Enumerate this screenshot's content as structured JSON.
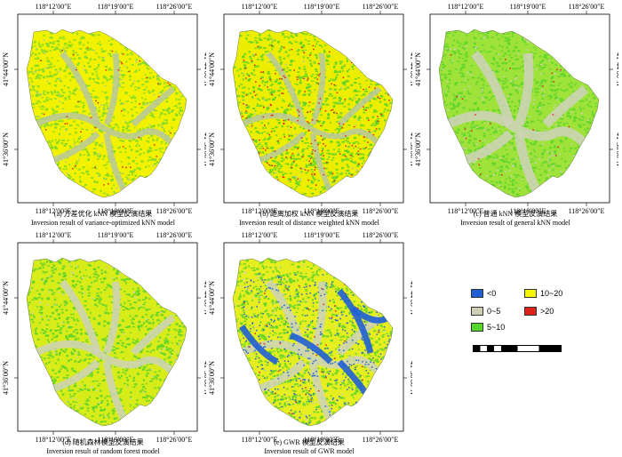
{
  "coords": {
    "top": [
      "118°12′00″E",
      "118°19′00″E",
      "118°26′00″E"
    ],
    "bottom": [
      "118°12′00″E",
      "118°19′00″E",
      "118°26′00″E"
    ],
    "lat": [
      "41°44′00″N",
      "41°36′00″N"
    ]
  },
  "panels": [
    {
      "cn": "(a) 方差优化 kNN 模型反演结果",
      "en": "Inversion result of variance-optimized kNN model"
    },
    {
      "cn": "(b) 距离加权 kNN 模型反演结果",
      "en": "Inversion result of distance weighted kNN model"
    },
    {
      "cn": "(c) 普通 kNN 模型反演结果",
      "en": "Inversion result of general kNN model"
    },
    {
      "cn": "(d) 随机森林模型反演结果",
      "en": "Inversion result of random forest model"
    },
    {
      "cn": "(e) GWR 模型反演结果",
      "en": "Inversion result of GWR model"
    }
  ],
  "legend": [
    {
      "label": "<0",
      "color": "#1f5fd6"
    },
    {
      "label": "10~20",
      "color": "#f5f500"
    },
    {
      "label": "0~5",
      "color": "#cfcfb8"
    },
    {
      "label": ">20",
      "color": "#e0201a"
    },
    {
      "label": "5~10",
      "color": "#55d62a"
    }
  ]
}
